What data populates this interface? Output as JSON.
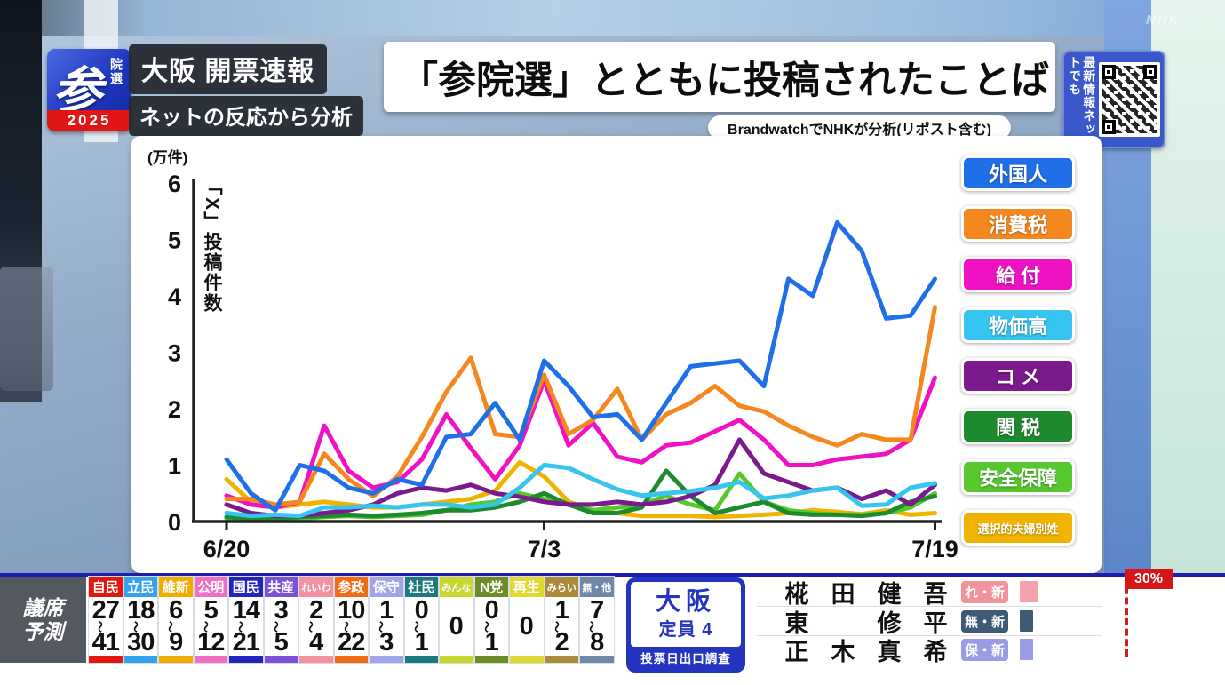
{
  "broadcaster_watermark": "NHK",
  "badge": {
    "main": "参",
    "sub": "院選",
    "year": "2025"
  },
  "topic": {
    "line1": "大阪 開票速報",
    "line2": "ネットの反応から分析"
  },
  "title": "「参院選」とともに投稿されたことば",
  "source_note": "BrandwatchでNHKが分析(リポスト含む)",
  "qr": {
    "label_right": "最新情報",
    "label_left": "ネットでも"
  },
  "chart_data": {
    "type": "line",
    "title": "「参院選」とともに投稿されたことば",
    "unit_label": "(万件)",
    "ylabel": "「X」投稿件数",
    "ylim": [
      0,
      6
    ],
    "yticks": [
      0,
      1,
      2,
      3,
      4,
      5,
      6
    ],
    "x_sampling": "daily 6/20 - 7/19 (30 points)",
    "x_tick_labels": [
      "6/20",
      "7/3",
      "7/19"
    ],
    "x_tick_indices": [
      0,
      13,
      29
    ],
    "grid": false,
    "legend_position": "right",
    "series": [
      {
        "name": "外国人",
        "display": "外国人",
        "color": "#1f6fe8",
        "values": [
          1.1,
          0.5,
          0.2,
          1.0,
          0.9,
          0.6,
          0.5,
          0.75,
          0.65,
          1.5,
          1.55,
          2.1,
          1.45,
          2.85,
          2.4,
          1.85,
          1.9,
          1.45,
          2.1,
          2.75,
          2.8,
          2.85,
          2.4,
          4.3,
          4.0,
          5.3,
          4.8,
          3.6,
          3.65,
          4.3
        ]
      },
      {
        "name": "消費税",
        "display": "消費税",
        "color": "#f5871f",
        "values": [
          0.4,
          0.4,
          0.3,
          0.35,
          1.2,
          0.75,
          0.45,
          0.8,
          1.5,
          2.3,
          2.9,
          1.55,
          1.5,
          2.6,
          1.55,
          1.8,
          2.35,
          1.45,
          1.9,
          2.1,
          2.4,
          2.05,
          1.95,
          1.7,
          1.5,
          1.35,
          1.55,
          1.45,
          1.45,
          3.8
        ]
      },
      {
        "name": "給付",
        "display": "給 付",
        "color": "#ef12c4",
        "values": [
          0.46,
          0.3,
          0.25,
          0.35,
          1.7,
          0.9,
          0.6,
          0.7,
          1.1,
          1.9,
          1.3,
          0.75,
          1.35,
          2.5,
          1.35,
          1.75,
          1.15,
          1.05,
          1.35,
          1.4,
          1.6,
          1.8,
          1.45,
          1.0,
          1.0,
          1.1,
          1.15,
          1.2,
          1.45,
          2.55
        ]
      },
      {
        "name": "物価高",
        "display": "物価高",
        "color": "#35c5f0",
        "values": [
          0.15,
          0.1,
          0.12,
          0.1,
          0.25,
          0.25,
          0.28,
          0.25,
          0.3,
          0.3,
          0.25,
          0.3,
          0.6,
          1.0,
          0.95,
          0.75,
          0.57,
          0.46,
          0.5,
          0.54,
          0.6,
          0.7,
          0.41,
          0.46,
          0.55,
          0.6,
          0.28,
          0.3,
          0.6,
          0.68
        ]
      },
      {
        "name": "コメ",
        "display": "コ メ",
        "color": "#7a1a8c",
        "values": [
          0.3,
          0.15,
          0.1,
          0.1,
          0.15,
          0.2,
          0.3,
          0.5,
          0.6,
          0.55,
          0.65,
          0.5,
          0.44,
          0.35,
          0.3,
          0.3,
          0.35,
          0.3,
          0.35,
          0.45,
          0.65,
          1.45,
          0.85,
          0.7,
          0.55,
          0.6,
          0.4,
          0.55,
          0.3,
          0.65
        ]
      },
      {
        "name": "関税",
        "display": "関 税",
        "color": "#1e8a2e",
        "values": [
          0.08,
          0.05,
          0.05,
          0.08,
          0.1,
          0.12,
          0.1,
          0.12,
          0.15,
          0.2,
          0.2,
          0.25,
          0.35,
          0.5,
          0.3,
          0.15,
          0.15,
          0.25,
          0.9,
          0.45,
          0.15,
          0.25,
          0.35,
          0.15,
          0.12,
          0.12,
          0.1,
          0.15,
          0.35,
          0.45
        ]
      },
      {
        "name": "安全保障",
        "display": "安全保障",
        "color": "#56c82d",
        "values": [
          0.05,
          0.05,
          0.04,
          0.05,
          0.08,
          0.1,
          0.08,
          0.1,
          0.12,
          0.2,
          0.3,
          0.35,
          0.5,
          0.4,
          0.3,
          0.2,
          0.25,
          0.3,
          0.45,
          0.3,
          0.2,
          0.85,
          0.35,
          0.2,
          0.15,
          0.12,
          0.12,
          0.15,
          0.25,
          0.5
        ]
      },
      {
        "name": "選択的夫婦別姓",
        "display": "選択的夫婦別姓",
        "color": "#f0b400",
        "values": [
          0.75,
          0.35,
          0.25,
          0.3,
          0.35,
          0.3,
          0.25,
          0.25,
          0.3,
          0.35,
          0.4,
          0.55,
          1.05,
          0.8,
          0.35,
          0.2,
          0.15,
          0.1,
          0.1,
          0.1,
          0.08,
          0.1,
          0.12,
          0.15,
          0.2,
          0.17,
          0.13,
          0.2,
          0.12,
          0.15
        ]
      }
    ]
  },
  "ticker": {
    "seat_label_line1": "議席",
    "seat_label_line2": "予測",
    "range_separator": "〜",
    "parties": [
      {
        "name": "自民",
        "color": "#e3170d",
        "low": "27",
        "high": "41"
      },
      {
        "name": "立民",
        "color": "#35a2ee",
        "low": "18",
        "high": "30"
      },
      {
        "name": "維新",
        "color": "#f0ad00",
        "low": "6",
        "high": "9"
      },
      {
        "name": "公明",
        "color": "#ee6fc3",
        "low": "5",
        "high": "12"
      },
      {
        "name": "国民",
        "color": "#2424bd",
        "low": "14",
        "high": "21"
      },
      {
        "name": "共産",
        "color": "#7d50d8",
        "low": "3",
        "high": "5"
      },
      {
        "name": "れいわ",
        "color": "#f291a0",
        "low": "2",
        "high": "4"
      },
      {
        "name": "参政",
        "color": "#f26b15",
        "low": "10",
        "high": "22"
      },
      {
        "name": "保守",
        "color": "#9fa5e8",
        "low": "1",
        "high": "3"
      },
      {
        "name": "社民",
        "color": "#1d7a80",
        "low": "0",
        "high": "1"
      },
      {
        "name": "みんな",
        "color": "#c6d830",
        "low": "0",
        "high": null
      },
      {
        "name": "N党",
        "color": "#6d8c28",
        "low": "0",
        "high": "1"
      },
      {
        "name": "再生",
        "color": "#dfd830",
        "low": "0",
        "high": null
      },
      {
        "name": "みらい",
        "color": "#ab8a3a",
        "low": "1",
        "high": "2"
      },
      {
        "name": "無・他",
        "color": "#7088a8",
        "low": "7",
        "high": "8"
      }
    ],
    "district": {
      "name": "大阪",
      "capacity": "定員 4",
      "note": "投票日出口調査"
    },
    "candidates": [
      {
        "name_chars": [
          "椛",
          "田",
          "健",
          "吾"
        ],
        "badge": "れ・新",
        "badge_color": "#f2929c",
        "bar_color": "#f4a3ac",
        "bar_pct": 7
      },
      {
        "name_chars": [
          "東",
          "",
          "修",
          "平"
        ],
        "badge": "無・新",
        "badge_color": "#3f5a75",
        "bar_color": "#3f5a75",
        "bar_pct": 5
      },
      {
        "name_chars": [
          "正",
          "木",
          "真",
          "希"
        ],
        "badge": "保・新",
        "badge_color": "#9b9ce8",
        "bar_color": "#9b9ce8",
        "bar_pct": 5
      }
    ],
    "marker": {
      "label": "30%",
      "color": "#d41616"
    }
  }
}
